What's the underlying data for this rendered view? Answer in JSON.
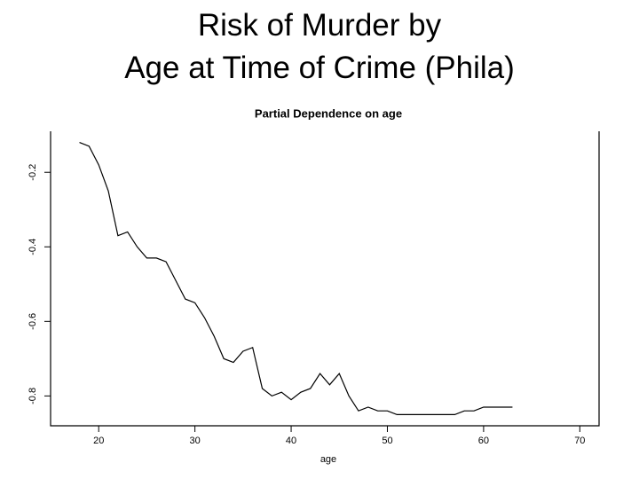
{
  "header": {
    "title_lines": [
      "Risk of Murder by",
      "Age at Time of Crime (Phila)"
    ]
  },
  "chart_data": {
    "type": "line",
    "title": "Partial Dependence on age",
    "x_label": "age",
    "x": [
      18,
      19,
      20,
      21,
      22,
      23,
      24,
      25,
      26,
      27,
      28,
      29,
      30,
      31,
      32,
      33,
      34,
      35,
      36,
      37,
      38,
      39,
      40,
      41,
      42,
      43,
      44,
      45,
      46,
      47,
      48,
      49,
      50,
      51,
      52,
      53,
      54,
      55,
      56,
      57,
      58,
      59,
      60,
      61,
      62,
      63
    ],
    "series": [
      {
        "name": "age",
        "color": "#000000",
        "values": [
          -0.12,
          -0.13,
          -0.18,
          -0.25,
          -0.37,
          -0.36,
          -0.4,
          -0.43,
          -0.43,
          -0.44,
          -0.49,
          -0.54,
          -0.55,
          -0.59,
          -0.64,
          -0.7,
          -0.71,
          -0.68,
          -0.67,
          -0.78,
          -0.8,
          -0.79,
          -0.81,
          -0.79,
          -0.78,
          -0.74,
          -0.77,
          -0.74,
          -0.8,
          -0.84,
          -0.83,
          -0.84,
          -0.84,
          -0.85,
          -0.85,
          -0.85,
          -0.85,
          -0.85,
          -0.85,
          -0.85,
          -0.84,
          -0.84,
          -0.83,
          -0.83,
          -0.83,
          -0.83
        ]
      }
    ],
    "xlim": [
      15,
      72
    ],
    "xticks": [
      20,
      30,
      40,
      50,
      60,
      70
    ],
    "ylim": [
      -0.88,
      -0.09
    ],
    "yticks": [
      -0.2,
      -0.4,
      -0.6,
      -0.8
    ]
  }
}
